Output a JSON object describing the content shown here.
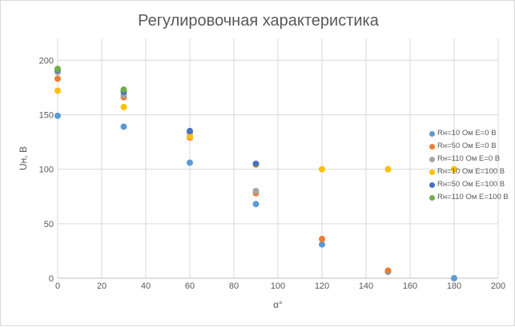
{
  "chart_data": {
    "type": "scatter",
    "title": "Регулировочная характеристика",
    "xlabel": "α°",
    "ylabel": "Uн, В",
    "xlim": [
      0,
      200
    ],
    "ylim": [
      0,
      220
    ],
    "xticks": [
      0,
      20,
      40,
      60,
      80,
      100,
      120,
      140,
      160,
      180,
      200
    ],
    "yticks": [
      0,
      50,
      100,
      150,
      200
    ],
    "grid": true,
    "legend_position": "right",
    "series": [
      {
        "name": "Rн=10 Ом E=0 В",
        "color": "#5b9bd5",
        "x": [
          0,
          30,
          60,
          90,
          120,
          150,
          180
        ],
        "y": [
          149,
          139,
          106,
          68,
          31,
          6,
          0
        ]
      },
      {
        "name": "Rн=50 Ом E=0 В",
        "color": "#ed7d31",
        "x": [
          0,
          30,
          60,
          90,
          120,
          150
        ],
        "y": [
          183,
          166,
          129,
          78,
          36,
          7
        ]
      },
      {
        "name": "Rн=110 Ом E=0 В",
        "color": "#a5a5a5",
        "x": [
          0,
          30,
          60,
          90
        ],
        "y": [
          189,
          168,
          133,
          80
        ]
      },
      {
        "name": "Rн=10 Ом E=100 В",
        "color": "#ffc000",
        "x": [
          0,
          30,
          60,
          90,
          120,
          150,
          180
        ],
        "y": [
          172,
          157,
          130,
          104,
          100,
          100,
          100
        ]
      },
      {
        "name": "Rн=50 Ом E=100 В",
        "color": "#4472c4",
        "x": [
          0,
          30,
          60,
          90
        ],
        "y": [
          191,
          171,
          135,
          105
        ]
      },
      {
        "name": "Rн=110 Ом E=100 В",
        "color": "#70ad47",
        "x": [
          0,
          30
        ],
        "y": [
          192,
          173
        ]
      }
    ]
  }
}
